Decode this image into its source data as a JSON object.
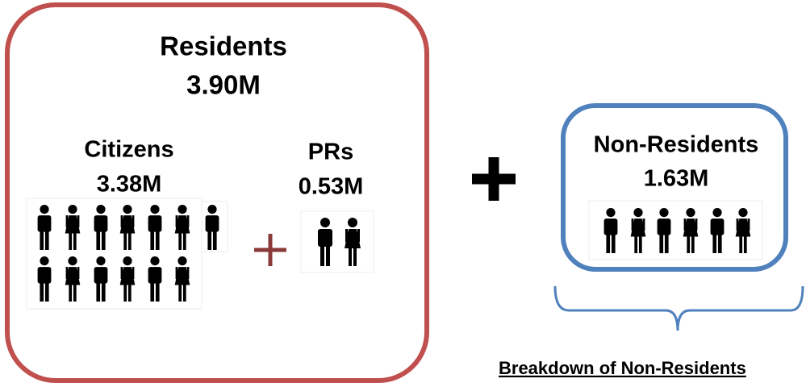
{
  "residents": {
    "label": "Residents",
    "value": "3.90M",
    "citizens": {
      "label": "Citizens",
      "value": "3.38M"
    },
    "prs": {
      "label": "PRs",
      "value": "0.53M"
    }
  },
  "non_residents": {
    "label": "Non-Residents",
    "value": "1.63M"
  },
  "breakdown": {
    "label": "Breakdown of Non-Residents"
  }
}
